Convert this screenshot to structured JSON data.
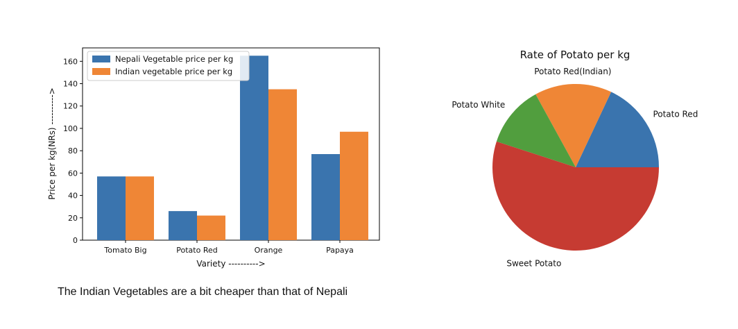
{
  "caption": "The Indian Vegetables are a bit cheaper than that of Nepali",
  "chart_data": [
    {
      "type": "bar",
      "title": "",
      "xlabel": "Variety ---------->",
      "ylabel": "Price per kg(NRs) ---------->",
      "categories": [
        "Tomato Big",
        "Potato Red",
        "Orange",
        "Papaya"
      ],
      "series": [
        {
          "name": "Nepali Vegetable price per kg",
          "color": "#3a74ae",
          "values": [
            57,
            26,
            165,
            77
          ]
        },
        {
          "name": "Indian vegetable price per kg",
          "color": "#ef8636",
          "values": [
            57,
            22,
            135,
            97
          ]
        }
      ],
      "ylim": [
        0,
        172
      ],
      "yticks": [
        0,
        20,
        40,
        60,
        80,
        100,
        120,
        140,
        160
      ],
      "grid": false,
      "legend": "top-left"
    },
    {
      "type": "pie",
      "title": "Rate of Potato per kg",
      "labels": [
        "Potato Red",
        "Potato Red(Indian)",
        "Potato White",
        "Sweet Potato"
      ],
      "values": [
        18,
        15,
        12,
        55
      ],
      "colors": [
        "#3a74ae",
        "#ef8636",
        "#519e3e",
        "#c63b32"
      ],
      "startangle": 0,
      "legend": "none"
    }
  ]
}
